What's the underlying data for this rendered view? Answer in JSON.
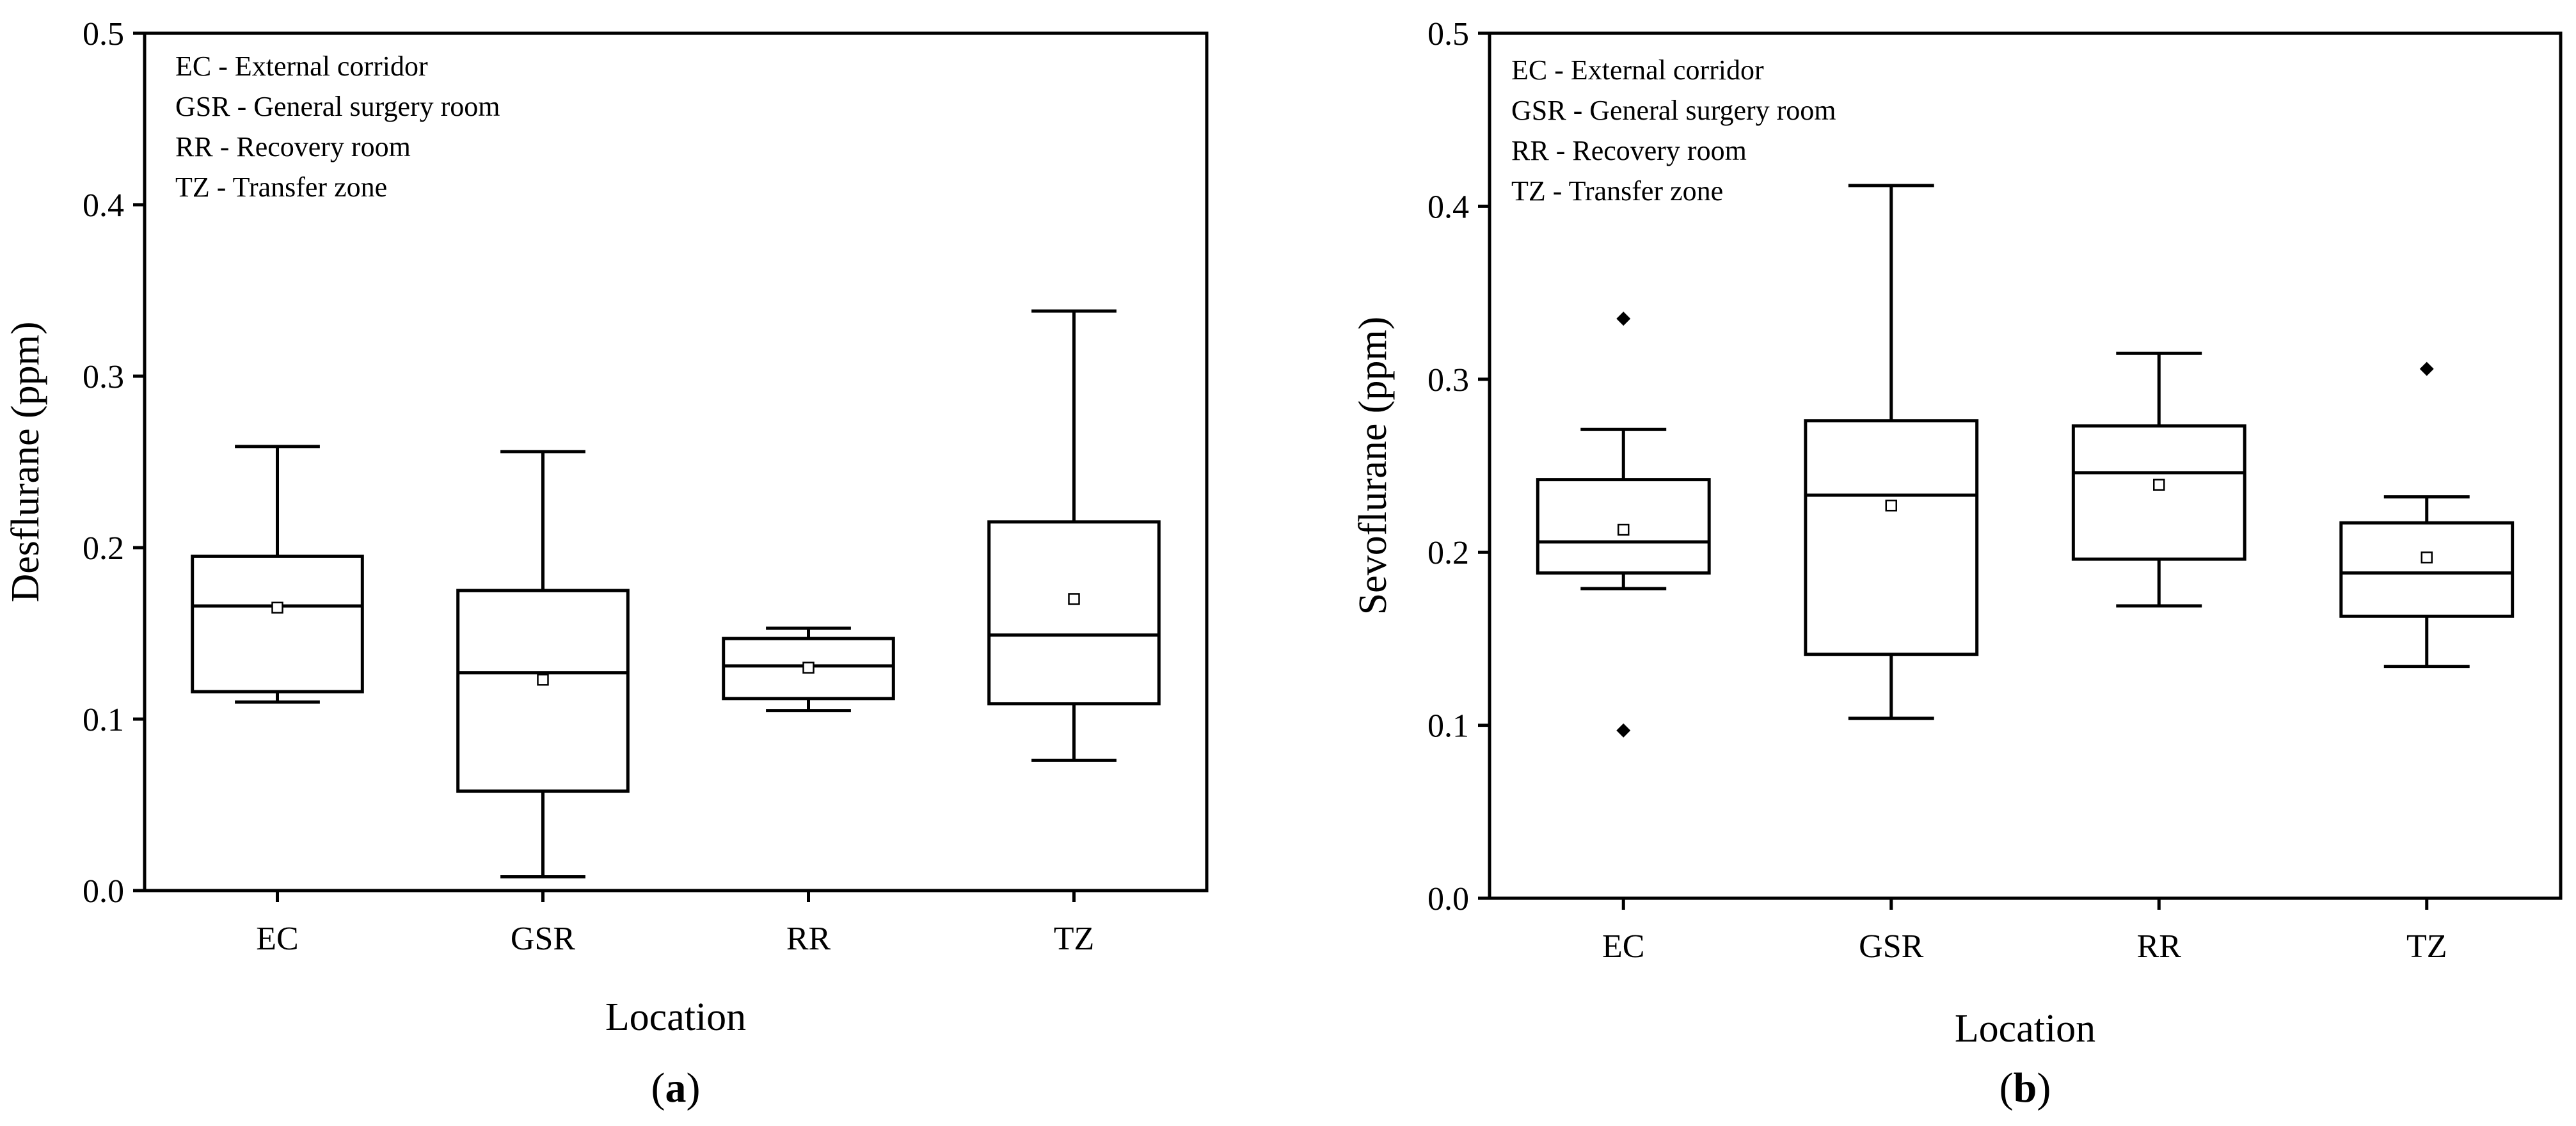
{
  "chart_data": [
    {
      "type": "box",
      "panel_label": "a",
      "xlabel": "Location",
      "ylabel": "Desflurane (ppm)",
      "ylim": [
        0.0,
        0.5
      ],
      "yticks": [
        "0.0",
        "0.1",
        "0.2",
        "0.3",
        "0.4",
        "0.5"
      ],
      "categories": [
        "EC",
        "GSR",
        "RR",
        "TZ"
      ],
      "legend": [
        "EC - External corridor",
        "GSR - General surgery room",
        "RR - Recovery room",
        "TZ - Transfer zone"
      ],
      "legend_position": "top-left",
      "grid": false,
      "boxes": [
        {
          "category": "EC",
          "whisker_low": 0.11,
          "q1": 0.116,
          "median": 0.166,
          "q3": 0.195,
          "whisker_high": 0.259,
          "mean": 0.165,
          "outliers": []
        },
        {
          "category": "GSR",
          "whisker_low": 0.008,
          "q1": 0.058,
          "median": 0.127,
          "q3": 0.175,
          "whisker_high": 0.256,
          "mean": 0.123,
          "outliers": []
        },
        {
          "category": "RR",
          "whisker_low": 0.105,
          "q1": 0.112,
          "median": 0.131,
          "q3": 0.147,
          "whisker_high": 0.153,
          "mean": 0.13,
          "outliers": []
        },
        {
          "category": "TZ",
          "whisker_low": 0.076,
          "q1": 0.109,
          "median": 0.149,
          "q3": 0.215,
          "whisker_high": 0.338,
          "mean": 0.17,
          "outliers": []
        }
      ]
    },
    {
      "type": "box",
      "panel_label": "b",
      "xlabel": "Location",
      "ylabel": "Sevoflurane (ppm)",
      "ylim": [
        0.0,
        0.5
      ],
      "yticks": [
        "0.0",
        "0.1",
        "0.2",
        "0.3",
        "0.4",
        "0.5"
      ],
      "categories": [
        "EC",
        "GSR",
        "RR",
        "TZ"
      ],
      "legend": [
        "EC - External corridor",
        "GSR - General surgery room",
        "RR - Recovery room",
        "TZ - Transfer zone"
      ],
      "legend_position": "top-left",
      "grid": false,
      "boxes": [
        {
          "category": "EC",
          "whisker_low": 0.179,
          "q1": 0.188,
          "median": 0.206,
          "q3": 0.242,
          "whisker_high": 0.271,
          "mean": 0.213,
          "outliers": [
            0.335,
            0.097
          ]
        },
        {
          "category": "GSR",
          "whisker_low": 0.104,
          "q1": 0.141,
          "median": 0.233,
          "q3": 0.276,
          "whisker_high": 0.412,
          "mean": 0.227,
          "outliers": []
        },
        {
          "category": "RR",
          "whisker_low": 0.169,
          "q1": 0.196,
          "median": 0.246,
          "q3": 0.273,
          "whisker_high": 0.315,
          "mean": 0.239,
          "outliers": []
        },
        {
          "category": "TZ",
          "whisker_low": 0.134,
          "q1": 0.163,
          "median": 0.188,
          "q3": 0.217,
          "whisker_high": 0.232,
          "mean": 0.197,
          "outliers": [
            0.306
          ]
        }
      ]
    }
  ]
}
